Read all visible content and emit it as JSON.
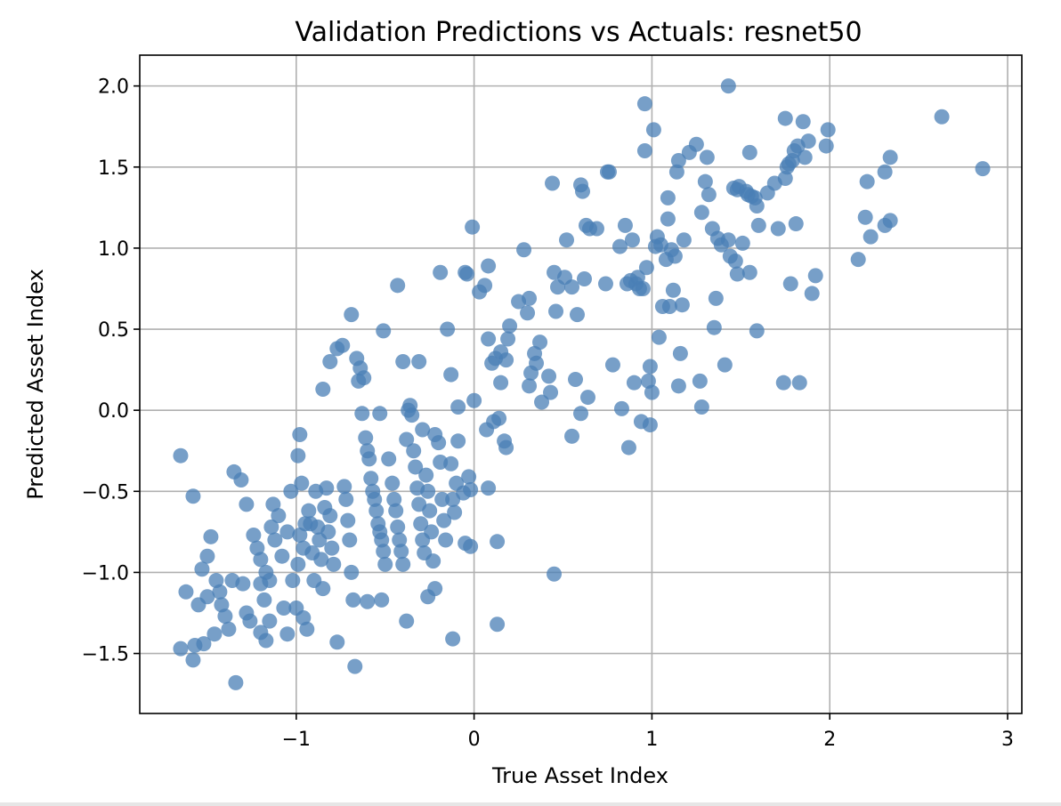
{
  "chart_data": {
    "type": "scatter",
    "title": "Validation Predictions vs Actuals: resnet50",
    "xlabel": "True Asset Index",
    "ylabel": "Predicted Asset Index",
    "xlim": [
      -1.88,
      3.08
    ],
    "ylim": [
      -1.87,
      2.19
    ],
    "grid": true,
    "marker_color": "#4a7fb5",
    "xticks": [
      -1,
      0,
      1,
      2,
      3
    ],
    "xtick_labels": [
      "−1",
      "0",
      "1",
      "2",
      "3"
    ],
    "yticks": [
      -1.5,
      -1.0,
      -0.5,
      0.0,
      0.5,
      1.0,
      1.5,
      2.0
    ],
    "ytick_labels": [
      "−1.5",
      "−1.0",
      "−0.5",
      "0.0",
      "0.5",
      "1.0",
      "1.5",
      "2.0"
    ],
    "points": [
      [
        -1.65,
        -0.28
      ],
      [
        -1.58,
        -0.53
      ],
      [
        -1.62,
        -1.12
      ],
      [
        -1.55,
        -1.2
      ],
      [
        -1.5,
        -1.15
      ],
      [
        -1.48,
        -0.78
      ],
      [
        -1.5,
        -0.9
      ],
      [
        -1.53,
        -0.98
      ],
      [
        -1.45,
        -1.05
      ],
      [
        -1.43,
        -1.12
      ],
      [
        -1.42,
        -1.2
      ],
      [
        -1.4,
        -1.27
      ],
      [
        -1.38,
        -1.35
      ],
      [
        -1.46,
        -1.38
      ],
      [
        -1.52,
        -1.44
      ],
      [
        -1.57,
        -1.45
      ],
      [
        -1.58,
        -1.54
      ],
      [
        -1.65,
        -1.47
      ],
      [
        -1.34,
        -1.68
      ],
      [
        -1.36,
        -1.05
      ],
      [
        -1.3,
        -1.07
      ],
      [
        -1.28,
        -1.25
      ],
      [
        -1.26,
        -1.3
      ],
      [
        -1.35,
        -0.38
      ],
      [
        -1.31,
        -0.43
      ],
      [
        -1.28,
        -0.58
      ],
      [
        -1.24,
        -0.77
      ],
      [
        -1.22,
        -0.85
      ],
      [
        -1.2,
        -0.92
      ],
      [
        -1.17,
        -1.0
      ],
      [
        -1.15,
        -1.05
      ],
      [
        -1.2,
        -1.07
      ],
      [
        -1.18,
        -1.17
      ],
      [
        -1.2,
        -1.37
      ],
      [
        -1.17,
        -1.42
      ],
      [
        -1.15,
        -1.3
      ],
      [
        -1.12,
        -0.8
      ],
      [
        -1.14,
        -0.72
      ],
      [
        -1.1,
        -0.65
      ],
      [
        -1.13,
        -0.58
      ],
      [
        -1.08,
        -0.9
      ],
      [
        -1.05,
        -0.75
      ],
      [
        -1.07,
        -1.22
      ],
      [
        -1.02,
        -1.05
      ],
      [
        -1.05,
        -1.38
      ],
      [
        -1.03,
        -0.5
      ],
      [
        -0.98,
        -0.15
      ],
      [
        -0.99,
        -0.28
      ],
      [
        -0.97,
        -0.45
      ],
      [
        -0.95,
        -0.7
      ],
      [
        -0.98,
        -0.77
      ],
      [
        -0.96,
        -0.85
      ],
      [
        -0.99,
        -0.95
      ],
      [
        -1.0,
        -1.22
      ],
      [
        -0.96,
        -1.28
      ],
      [
        -0.94,
        -1.35
      ],
      [
        -0.93,
        -0.62
      ],
      [
        -0.92,
        -0.7
      ],
      [
        -0.91,
        -0.88
      ],
      [
        -0.9,
        -1.05
      ],
      [
        -0.89,
        -0.5
      ],
      [
        -0.88,
        -0.72
      ],
      [
        -0.87,
        -0.8
      ],
      [
        -0.86,
        -0.92
      ],
      [
        -0.85,
        -1.1
      ],
      [
        -0.84,
        -0.6
      ],
      [
        -0.83,
        -0.48
      ],
      [
        -0.82,
        -0.75
      ],
      [
        -0.81,
        -0.65
      ],
      [
        -0.8,
        -0.85
      ],
      [
        -0.79,
        -0.95
      ],
      [
        -0.77,
        -1.43
      ],
      [
        -0.85,
        0.13
      ],
      [
        -0.81,
        0.3
      ],
      [
        -0.77,
        0.38
      ],
      [
        -0.74,
        0.4
      ],
      [
        -0.73,
        -0.47
      ],
      [
        -0.72,
        -0.55
      ],
      [
        -0.71,
        -0.68
      ],
      [
        -0.7,
        -0.8
      ],
      [
        -0.69,
        -1.0
      ],
      [
        -0.68,
        -1.17
      ],
      [
        -0.67,
        -1.58
      ],
      [
        -0.69,
        0.59
      ],
      [
        -0.66,
        0.32
      ],
      [
        -0.64,
        0.26
      ],
      [
        -0.65,
        0.18
      ],
      [
        -0.62,
        0.2
      ],
      [
        -0.63,
        -0.02
      ],
      [
        -0.61,
        -0.17
      ],
      [
        -0.6,
        -0.25
      ],
      [
        -0.59,
        -0.3
      ],
      [
        -0.58,
        -0.42
      ],
      [
        -0.57,
        -0.5
      ],
      [
        -0.56,
        -0.55
      ],
      [
        -0.55,
        -0.62
      ],
      [
        -0.54,
        -0.7
      ],
      [
        -0.53,
        -0.75
      ],
      [
        -0.52,
        -0.8
      ],
      [
        -0.51,
        -0.87
      ],
      [
        -0.5,
        -0.95
      ],
      [
        -0.52,
        -1.17
      ],
      [
        -0.6,
        -1.18
      ],
      [
        -0.53,
        -0.02
      ],
      [
        -0.51,
        0.49
      ],
      [
        -0.48,
        -0.3
      ],
      [
        -0.46,
        -0.45
      ],
      [
        -0.45,
        -0.55
      ],
      [
        -0.44,
        -0.62
      ],
      [
        -0.43,
        -0.72
      ],
      [
        -0.42,
        -0.8
      ],
      [
        -0.41,
        -0.87
      ],
      [
        -0.4,
        -0.95
      ],
      [
        -0.4,
        0.3
      ],
      [
        -0.43,
        0.77
      ],
      [
        -0.38,
        -0.18
      ],
      [
        -0.37,
        0.0
      ],
      [
        -0.36,
        0.03
      ],
      [
        -0.35,
        -0.03
      ],
      [
        -0.34,
        -0.25
      ],
      [
        -0.33,
        -0.35
      ],
      [
        -0.32,
        -0.48
      ],
      [
        -0.31,
        -0.58
      ],
      [
        -0.3,
        -0.7
      ],
      [
        -0.29,
        -0.8
      ],
      [
        -0.28,
        -0.88
      ],
      [
        -0.31,
        0.3
      ],
      [
        -0.29,
        -0.12
      ],
      [
        -0.27,
        -0.4
      ],
      [
        -0.26,
        -0.5
      ],
      [
        -0.25,
        -0.62
      ],
      [
        -0.24,
        -0.75
      ],
      [
        -0.23,
        -0.93
      ],
      [
        -0.22,
        -1.1
      ],
      [
        -0.26,
        -1.15
      ],
      [
        -0.38,
        -1.3
      ],
      [
        -0.22,
        -0.15
      ],
      [
        -0.2,
        -0.2
      ],
      [
        -0.19,
        -0.32
      ],
      [
        -0.18,
        -0.55
      ],
      [
        -0.17,
        -0.68
      ],
      [
        -0.16,
        -0.8
      ],
      [
        -0.19,
        0.85
      ],
      [
        -0.15,
        0.5
      ],
      [
        -0.13,
        0.22
      ],
      [
        -0.13,
        -0.33
      ],
      [
        -0.12,
        -0.55
      ],
      [
        -0.11,
        -0.63
      ],
      [
        -0.1,
        -0.45
      ],
      [
        -0.09,
        0.02
      ],
      [
        -0.09,
        -0.19
      ],
      [
        -0.06,
        -0.51
      ],
      [
        -0.05,
        -0.82
      ],
      [
        -0.03,
        -0.41
      ],
      [
        -0.02,
        -0.49
      ],
      [
        -0.05,
        0.85
      ],
      [
        -0.04,
        0.84
      ],
      [
        -0.02,
        -0.84
      ],
      [
        -0.12,
        -1.41
      ],
      [
        0.0,
        0.06
      ],
      [
        -0.01,
        1.13
      ],
      [
        0.03,
        0.73
      ],
      [
        0.06,
        0.77
      ],
      [
        0.08,
        0.89
      ],
      [
        0.08,
        0.44
      ],
      [
        0.07,
        -0.12
      ],
      [
        0.08,
        -0.48
      ],
      [
        0.1,
        0.29
      ],
      [
        0.12,
        0.32
      ],
      [
        0.11,
        -0.07
      ],
      [
        0.14,
        -0.05
      ],
      [
        0.15,
        0.17
      ],
      [
        0.15,
        0.36
      ],
      [
        0.17,
        -0.19
      ],
      [
        0.18,
        -0.23
      ],
      [
        0.19,
        0.44
      ],
      [
        0.2,
        0.52
      ],
      [
        0.13,
        -0.81
      ],
      [
        0.13,
        -1.32
      ],
      [
        0.18,
        0.31
      ],
      [
        0.25,
        0.67
      ],
      [
        0.28,
        0.99
      ],
      [
        0.3,
        0.6
      ],
      [
        0.31,
        0.69
      ],
      [
        0.31,
        0.15
      ],
      [
        0.32,
        0.23
      ],
      [
        0.34,
        0.35
      ],
      [
        0.35,
        0.29
      ],
      [
        0.37,
        0.42
      ],
      [
        0.38,
        0.05
      ],
      [
        0.42,
        0.21
      ],
      [
        0.43,
        0.11
      ],
      [
        0.44,
        1.4
      ],
      [
        0.45,
        0.85
      ],
      [
        0.46,
        0.61
      ],
      [
        0.47,
        0.76
      ],
      [
        0.45,
        -1.01
      ],
      [
        0.51,
        0.82
      ],
      [
        0.52,
        1.05
      ],
      [
        0.55,
        0.76
      ],
      [
        0.55,
        -0.16
      ],
      [
        0.57,
        0.19
      ],
      [
        0.58,
        0.59
      ],
      [
        0.6,
        1.39
      ],
      [
        0.61,
        1.35
      ],
      [
        0.6,
        -0.02
      ],
      [
        0.62,
        0.81
      ],
      [
        0.63,
        1.14
      ],
      [
        0.65,
        1.12
      ],
      [
        0.64,
        0.08
      ],
      [
        0.69,
        1.12
      ],
      [
        0.75,
        1.47
      ],
      [
        0.76,
        1.47
      ],
      [
        0.74,
        0.78
      ],
      [
        0.78,
        0.28
      ],
      [
        0.82,
        1.01
      ],
      [
        0.83,
        0.01
      ],
      [
        0.85,
        1.14
      ],
      [
        0.86,
        0.78
      ],
      [
        0.88,
        0.8
      ],
      [
        0.87,
        -0.23
      ],
      [
        0.89,
        1.05
      ],
      [
        0.9,
        0.17
      ],
      [
        0.91,
        0.78
      ],
      [
        0.92,
        0.82
      ],
      [
        0.93,
        0.75
      ],
      [
        0.95,
        0.75
      ],
      [
        0.94,
        -0.07
      ],
      [
        0.96,
        1.89
      ],
      [
        0.96,
        1.6
      ],
      [
        0.97,
        0.88
      ],
      [
        0.98,
        0.18
      ],
      [
        0.99,
        -0.09
      ],
      [
        0.99,
        0.27
      ],
      [
        1.0,
        0.11
      ],
      [
        1.01,
        1.73
      ],
      [
        1.02,
        1.01
      ],
      [
        1.03,
        1.07
      ],
      [
        1.04,
        0.45
      ],
      [
        1.05,
        1.02
      ],
      [
        1.06,
        0.64
      ],
      [
        1.08,
        0.93
      ],
      [
        1.09,
        1.18
      ],
      [
        1.09,
        1.31
      ],
      [
        1.1,
        0.64
      ],
      [
        1.11,
        0.99
      ],
      [
        1.12,
        0.74
      ],
      [
        1.13,
        0.95
      ],
      [
        1.14,
        1.47
      ],
      [
        1.15,
        0.15
      ],
      [
        1.15,
        1.54
      ],
      [
        1.16,
        0.35
      ],
      [
        1.17,
        0.65
      ],
      [
        1.18,
        1.05
      ],
      [
        1.21,
        1.59
      ],
      [
        1.25,
        1.64
      ],
      [
        1.27,
        0.18
      ],
      [
        1.28,
        0.02
      ],
      [
        1.28,
        1.22
      ],
      [
        1.3,
        1.41
      ],
      [
        1.31,
        1.56
      ],
      [
        1.32,
        1.33
      ],
      [
        1.34,
        1.12
      ],
      [
        1.35,
        0.51
      ],
      [
        1.36,
        0.69
      ],
      [
        1.37,
        1.06
      ],
      [
        1.39,
        1.02
      ],
      [
        1.41,
        0.28
      ],
      [
        1.43,
        1.05
      ],
      [
        1.44,
        0.95
      ],
      [
        1.43,
        2.0
      ],
      [
        1.46,
        1.37
      ],
      [
        1.47,
        0.92
      ],
      [
        1.48,
        1.36
      ],
      [
        1.49,
        1.38
      ],
      [
        1.48,
        0.84
      ],
      [
        1.51,
        1.03
      ],
      [
        1.53,
        1.35
      ],
      [
        1.54,
        1.33
      ],
      [
        1.55,
        1.59
      ],
      [
        1.55,
        0.85
      ],
      [
        1.56,
        1.32
      ],
      [
        1.58,
        1.31
      ],
      [
        1.59,
        1.26
      ],
      [
        1.59,
        0.49
      ],
      [
        1.6,
        1.14
      ],
      [
        1.65,
        1.34
      ],
      [
        1.69,
        1.4
      ],
      [
        1.71,
        1.12
      ],
      [
        1.74,
        0.17
      ],
      [
        1.75,
        1.8
      ],
      [
        1.75,
        1.43
      ],
      [
        1.76,
        1.5
      ],
      [
        1.77,
        1.52
      ],
      [
        1.78,
        0.78
      ],
      [
        1.79,
        1.54
      ],
      [
        1.8,
        1.6
      ],
      [
        1.81,
        1.15
      ],
      [
        1.82,
        1.63
      ],
      [
        1.83,
        0.17
      ],
      [
        1.85,
        1.78
      ],
      [
        1.86,
        1.56
      ],
      [
        1.88,
        1.66
      ],
      [
        1.9,
        0.72
      ],
      [
        1.92,
        0.83
      ],
      [
        1.98,
        1.63
      ],
      [
        1.99,
        1.73
      ],
      [
        2.16,
        0.93
      ],
      [
        2.2,
        1.19
      ],
      [
        2.21,
        1.41
      ],
      [
        2.23,
        1.07
      ],
      [
        2.31,
        1.47
      ],
      [
        2.31,
        1.14
      ],
      [
        2.34,
        1.17
      ],
      [
        2.34,
        1.56
      ],
      [
        2.63,
        1.81
      ],
      [
        2.86,
        1.49
      ]
    ]
  }
}
